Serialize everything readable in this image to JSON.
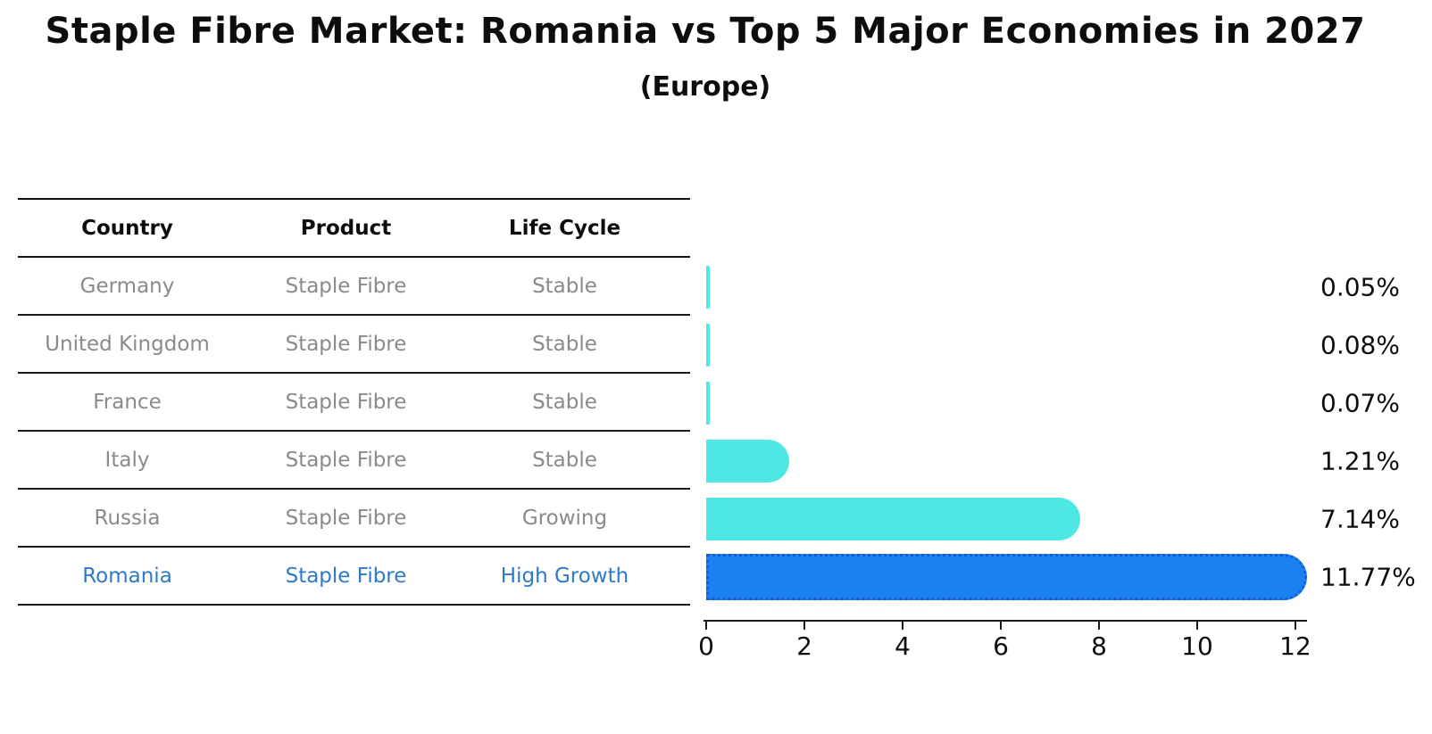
{
  "title": "Staple Fibre Market: Romania vs Top 5 Major Economies in 2027",
  "subtitle": "(Europe)",
  "colors": {
    "bar_default": "#4de8e4",
    "bar_highlight": "#1b80f0",
    "bar_highlight_border": "#0f5fd6",
    "table_text": "#8a8a8a",
    "highlight_text": "#2e79c9",
    "text": "#0d0d0d"
  },
  "table": {
    "headers": [
      "Country",
      "Product",
      "Life Cycle"
    ],
    "rows": [
      {
        "country": "Germany",
        "product": "Staple Fibre",
        "life_cycle": "Stable",
        "highlight": false
      },
      {
        "country": "United Kingdom",
        "product": "Staple Fibre",
        "life_cycle": "Stable",
        "highlight": false
      },
      {
        "country": "France",
        "product": "Staple Fibre",
        "life_cycle": "Stable",
        "highlight": false
      },
      {
        "country": "Italy",
        "product": "Staple Fibre",
        "life_cycle": "Stable",
        "highlight": false
      },
      {
        "country": "Russia",
        "product": "Staple Fibre",
        "life_cycle": "Growing",
        "highlight": false
      },
      {
        "country": "Romania",
        "product": "Staple Fibre",
        "life_cycle": "High Growth",
        "highlight": true
      }
    ]
  },
  "chart_data": {
    "type": "bar",
    "orientation": "horizontal",
    "title": "Staple Fibre Market: Romania vs Top 5 Major Economies in 2027",
    "subtitle": "(Europe)",
    "categories": [
      "Germany",
      "United Kingdom",
      "France",
      "Italy",
      "Russia",
      "Romania"
    ],
    "values": [
      0.05,
      0.08,
      0.07,
      1.21,
      7.14,
      11.77
    ],
    "value_labels": [
      "0.05%",
      "0.08%",
      "0.07%",
      "1.21%",
      "7.14%",
      "11.77%"
    ],
    "highlight_index": 5,
    "x_ticks": [
      0,
      2,
      4,
      6,
      8,
      10,
      12
    ],
    "xlim": [
      0,
      12.3
    ],
    "xlabel": "",
    "ylabel": "",
    "grid": false,
    "legend": false
  }
}
